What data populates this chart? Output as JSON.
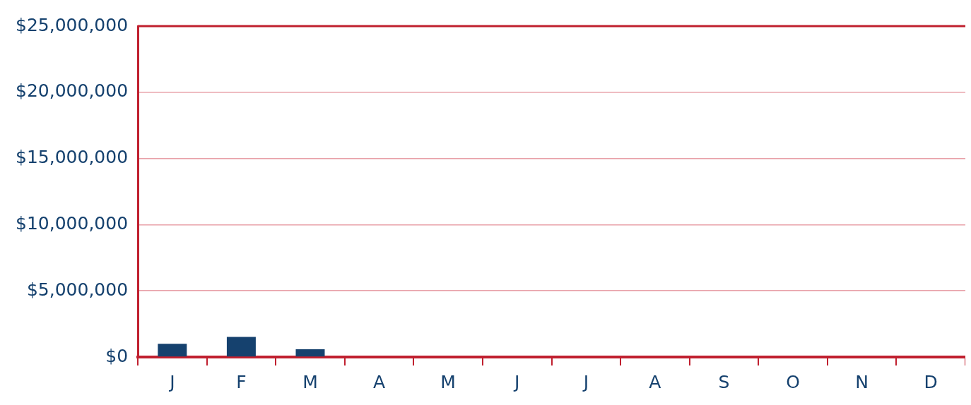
{
  "chart_data": {
    "type": "bar",
    "categories": [
      "J",
      "F",
      "M",
      "A",
      "M",
      "J",
      "J",
      "A",
      "S",
      "O",
      "N",
      "D"
    ],
    "values": [
      1000000,
      1520000,
      580000,
      null,
      null,
      null,
      null,
      null,
      null,
      null,
      null,
      null
    ],
    "color": "#15416e",
    "ylim": [
      0,
      25000000
    ],
    "yticks": [
      {
        "value": 0,
        "label": "$0"
      },
      {
        "value": 5000000,
        "label": "$5,000,000"
      },
      {
        "value": 10000000,
        "label": "$10,000,000"
      },
      {
        "value": 15000000,
        "label": "$15,000,000"
      },
      {
        "value": 20000000,
        "label": "$20,000,000"
      },
      {
        "value": 25000000,
        "label": "$25,000,000"
      }
    ],
    "grid": "y",
    "legend": false
  }
}
